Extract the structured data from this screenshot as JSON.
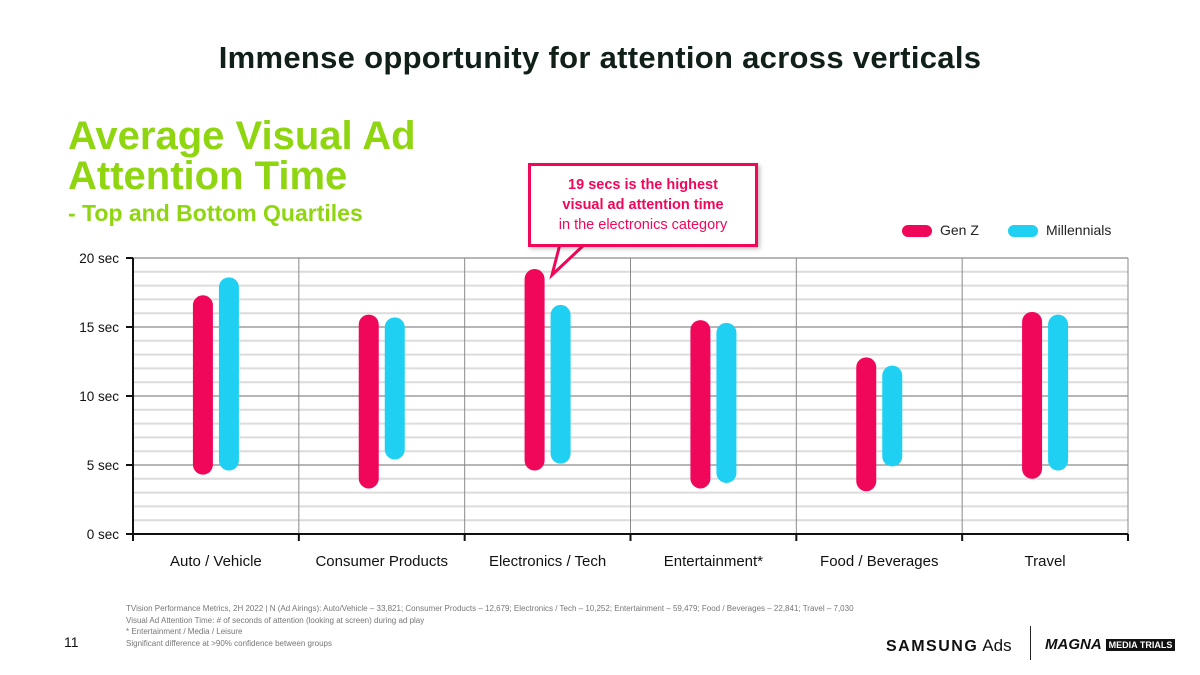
{
  "headline": "Immense opportunity for attention across verticals",
  "chart_title": {
    "line1": "Average Visual Ad",
    "line2": "Attention Time",
    "subtitle": "- Top and Bottom Quartiles"
  },
  "callout": {
    "bold1": "19 secs is the highest",
    "bold2": "visual ad attention time",
    "normal": "in the electronics category"
  },
  "colors": {
    "genz": "#f0075a",
    "millennials": "#1fd0f2",
    "title_green": "#8fd610"
  },
  "chart_data": {
    "type": "range-bar",
    "ylim": [
      0,
      20
    ],
    "yticks": [
      "0 sec",
      "5 sec",
      "10 sec",
      "15 sec",
      "20 sec"
    ],
    "yticks_values": [
      0,
      5,
      10,
      15,
      20
    ],
    "grid": true,
    "legend": "top-right",
    "categories": [
      "Auto / Vehicle",
      "Consumer Products",
      "Electronics / Tech",
      "Entertainment*",
      "Food / Beverages",
      "Travel"
    ],
    "series": [
      {
        "name": "Gen Z",
        "low": [
          4.3,
          3.3,
          4.6,
          3.3,
          3.1,
          4.0
        ],
        "high": [
          17.3,
          15.9,
          19.2,
          15.5,
          12.8,
          16.1
        ]
      },
      {
        "name": "Millennials",
        "low": [
          4.6,
          5.4,
          5.1,
          3.7,
          4.9,
          4.6
        ],
        "high": [
          18.6,
          15.7,
          16.6,
          15.3,
          12.2,
          15.9
        ]
      }
    ]
  },
  "footnote": [
    "TVision Performance Metrics, 2H 2022 | N (Ad Airings): Auto/Vehicle – 33,821; Consumer Products – 12,679; Electronics / Tech – 10,252; Entertainment – 59,479; Food / Beverages – 22,841; Travel – 7,030",
    "Visual Ad Attention Time: # of seconds of attention (looking at screen) during ad play",
    "* Entertainment / Media / Leisure",
    "Significant difference at >90% confidence between groups"
  ],
  "page_number": "11",
  "brand": {
    "samsung": "SAMSUNG",
    "ads": "Ads",
    "magna": "MAGNA",
    "media_trials": "MEDIA TRIALS"
  }
}
